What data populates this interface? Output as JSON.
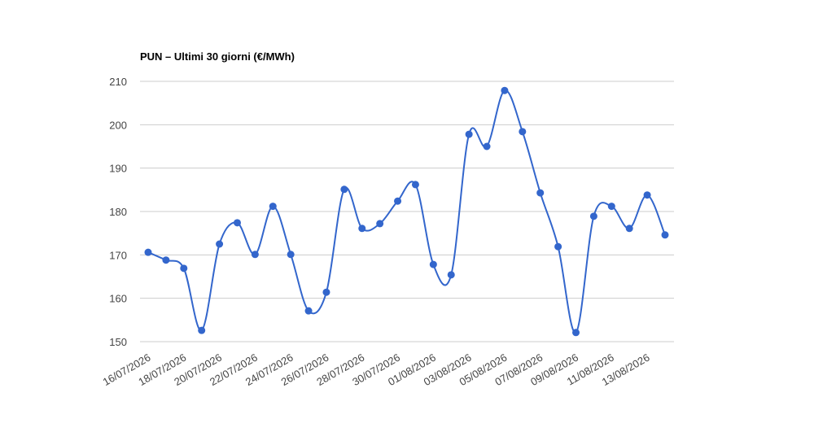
{
  "chart_data": {
    "type": "line",
    "title": "PUN – Ultimi 30 giorni (€/MWh)",
    "categories": [
      "16/07/2026",
      null,
      "18/07/2026",
      null,
      "20/07/2026",
      null,
      "22/07/2026",
      null,
      "24/07/2026",
      null,
      "26/07/2026",
      null,
      "28/07/2026",
      null,
      "30/07/2026",
      null,
      "01/08/2026",
      null,
      "03/08/2026",
      null,
      "05/08/2026",
      null,
      "07/08/2026",
      null,
      "09/08/2026",
      null,
      "11/08/2026",
      null,
      "13/08/2026",
      null
    ],
    "series": [
      {
        "name": "PUN",
        "color": "#3366cc",
        "values": [
          170.6,
          168.8,
          166.9,
          152.6,
          172.5,
          177.4,
          170.1,
          181.2,
          170.1,
          157.1,
          161.4,
          185.1,
          176.1,
          177.2,
          182.4,
          186.2,
          167.8,
          165.4,
          197.8,
          195.0,
          207.9,
          198.4,
          184.3,
          171.9,
          152.1,
          178.9,
          181.2,
          176.1,
          183.8,
          174.6
        ]
      }
    ],
    "ylim": [
      150,
      210
    ],
    "yticks": [
      150,
      160,
      170,
      180,
      190,
      200,
      210
    ],
    "grid": true
  }
}
